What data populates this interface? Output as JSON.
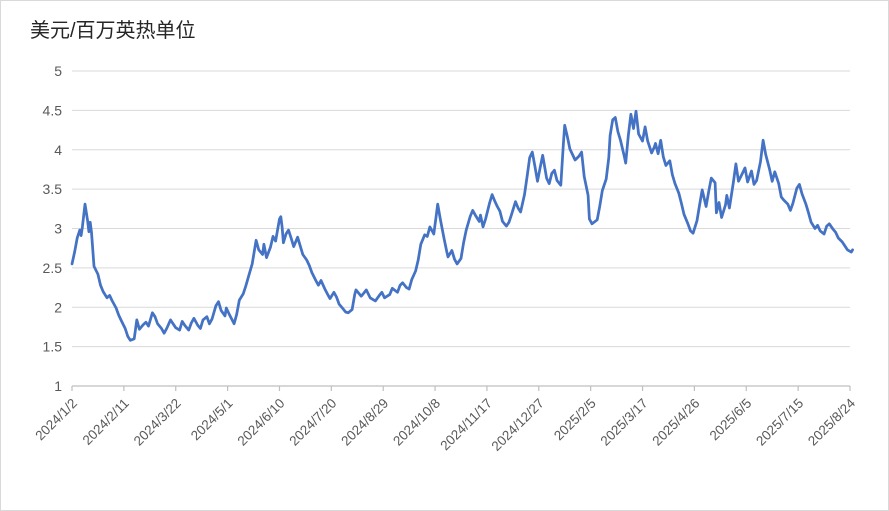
{
  "chart_data": {
    "type": "line",
    "title": "美元/百万英热单位",
    "xlabel": "",
    "ylabel": "",
    "ylim": [
      1,
      5
    ],
    "yticks": [
      1,
      1.5,
      2,
      2.5,
      3,
      3.5,
      4,
      4.5,
      5
    ],
    "xticks": [
      "2024/1/2",
      "2024/2/11",
      "2024/3/22",
      "2024/5/1",
      "2024/6/10",
      "2024/7/20",
      "2024/8/29",
      "2024/10/8",
      "2024/11/17",
      "2024/12/27",
      "2025/2/5",
      "2025/3/17",
      "2025/4/26",
      "2025/6/5",
      "2025/7/15",
      "2025/8/24"
    ],
    "grid": "horizontal",
    "legend": "none",
    "line_color": "#4472C4",
    "grid_color": "#D9D9D9",
    "axis_color": "#BFBFBF",
    "label_color": "#595959",
    "title_color": "#262626",
    "points": [
      [
        "2024/1/2",
        2.55
      ],
      [
        "2024/1/4",
        2.7
      ],
      [
        "2024/1/6",
        2.88
      ],
      [
        "2024/1/8",
        2.98
      ],
      [
        "2024/1/9",
        2.91
      ],
      [
        "2024/1/10",
        3.02
      ],
      [
        "2024/1/12",
        3.31
      ],
      [
        "2024/1/14",
        3.1
      ],
      [
        "2024/1/15",
        2.96
      ],
      [
        "2024/1/16",
        3.08
      ],
      [
        "2024/1/17",
        2.95
      ],
      [
        "2024/1/19",
        2.52
      ],
      [
        "2024/1/22",
        2.42
      ],
      [
        "2024/1/24",
        2.28
      ],
      [
        "2024/1/26",
        2.2
      ],
      [
        "2024/1/29",
        2.12
      ],
      [
        "2024/1/31",
        2.15
      ],
      [
        "2024/2/2",
        2.08
      ],
      [
        "2024/2/5",
        1.99
      ],
      [
        "2024/2/7",
        1.9
      ],
      [
        "2024/2/9",
        1.83
      ],
      [
        "2024/2/12",
        1.73
      ],
      [
        "2024/2/14",
        1.63
      ],
      [
        "2024/2/16",
        1.58
      ],
      [
        "2024/2/19",
        1.6
      ],
      [
        "2024/2/21",
        1.84
      ],
      [
        "2024/2/23",
        1.72
      ],
      [
        "2024/2/26",
        1.78
      ],
      [
        "2024/2/28",
        1.81
      ],
      [
        "2024/3/1",
        1.76
      ],
      [
        "2024/3/4",
        1.93
      ],
      [
        "2024/3/6",
        1.88
      ],
      [
        "2024/3/8",
        1.79
      ],
      [
        "2024/3/11",
        1.73
      ],
      [
        "2024/3/13",
        1.67
      ],
      [
        "2024/3/15",
        1.73
      ],
      [
        "2024/3/18",
        1.84
      ],
      [
        "2024/3/20",
        1.79
      ],
      [
        "2024/3/22",
        1.74
      ],
      [
        "2024/3/25",
        1.71
      ],
      [
        "2024/3/27",
        1.82
      ],
      [
        "2024/3/29",
        1.77
      ],
      [
        "2024/4/1",
        1.71
      ],
      [
        "2024/4/3",
        1.8
      ],
      [
        "2024/4/5",
        1.86
      ],
      [
        "2024/4/8",
        1.77
      ],
      [
        "2024/4/10",
        1.73
      ],
      [
        "2024/4/12",
        1.84
      ],
      [
        "2024/4/15",
        1.88
      ],
      [
        "2024/4/17",
        1.79
      ],
      [
        "2024/4/19",
        1.85
      ],
      [
        "2024/4/22",
        2.02
      ],
      [
        "2024/4/24",
        2.07
      ],
      [
        "2024/4/26",
        1.96
      ],
      [
        "2024/4/29",
        1.89
      ],
      [
        "2024/4/30",
        1.99
      ],
      [
        "2024/5/2",
        1.92
      ],
      [
        "2024/5/6",
        1.79
      ],
      [
        "2024/5/8",
        1.91
      ],
      [
        "2024/5/10",
        2.09
      ],
      [
        "2024/5/13",
        2.17
      ],
      [
        "2024/5/15",
        2.27
      ],
      [
        "2024/5/17",
        2.38
      ],
      [
        "2024/5/20",
        2.55
      ],
      [
        "2024/5/23",
        2.85
      ],
      [
        "2024/5/25",
        2.73
      ],
      [
        "2024/5/28",
        2.67
      ],
      [
        "2024/5/29",
        2.8
      ],
      [
        "2024/5/31",
        2.63
      ],
      [
        "2024/6/3",
        2.76
      ],
      [
        "2024/6/5",
        2.9
      ],
      [
        "2024/6/7",
        2.84
      ],
      [
        "2024/6/10",
        3.12
      ],
      [
        "2024/6/11",
        3.15
      ],
      [
        "2024/6/12",
        3.02
      ],
      [
        "2024/6/13",
        2.82
      ],
      [
        "2024/6/15",
        2.93
      ],
      [
        "2024/6/17",
        2.98
      ],
      [
        "2024/6/19",
        2.88
      ],
      [
        "2024/6/21",
        2.77
      ],
      [
        "2024/6/24",
        2.89
      ],
      [
        "2024/6/26",
        2.78
      ],
      [
        "2024/6/28",
        2.67
      ],
      [
        "2024/7/1",
        2.6
      ],
      [
        "2024/7/3",
        2.53
      ],
      [
        "2024/7/5",
        2.44
      ],
      [
        "2024/7/8",
        2.34
      ],
      [
        "2024/7/10",
        2.28
      ],
      [
        "2024/7/12",
        2.34
      ],
      [
        "2024/7/15",
        2.23
      ],
      [
        "2024/7/17",
        2.17
      ],
      [
        "2024/7/19",
        2.11
      ],
      [
        "2024/7/22",
        2.19
      ],
      [
        "2024/7/24",
        2.13
      ],
      [
        "2024/7/26",
        2.04
      ],
      [
        "2024/7/29",
        1.98
      ],
      [
        "2024/7/31",
        1.94
      ],
      [
        "2024/8/2",
        1.93
      ],
      [
        "2024/8/5",
        1.97
      ],
      [
        "2024/8/7",
        2.16
      ],
      [
        "2024/8/8",
        2.22
      ],
      [
        "2024/8/12",
        2.14
      ],
      [
        "2024/8/14",
        2.18
      ],
      [
        "2024/8/16",
        2.22
      ],
      [
        "2024/8/19",
        2.12
      ],
      [
        "2024/8/21",
        2.1
      ],
      [
        "2024/8/23",
        2.08
      ],
      [
        "2024/8/26",
        2.15
      ],
      [
        "2024/8/28",
        2.19
      ],
      [
        "2024/8/30",
        2.12
      ],
      [
        "2024/9/3",
        2.16
      ],
      [
        "2024/9/5",
        2.24
      ],
      [
        "2024/9/9",
        2.19
      ],
      [
        "2024/9/11",
        2.28
      ],
      [
        "2024/9/13",
        2.31
      ],
      [
        "2024/9/16",
        2.25
      ],
      [
        "2024/9/18",
        2.23
      ],
      [
        "2024/9/20",
        2.35
      ],
      [
        "2024/9/23",
        2.46
      ],
      [
        "2024/9/25",
        2.6
      ],
      [
        "2024/9/27",
        2.8
      ],
      [
        "2024/9/30",
        2.92
      ],
      [
        "2024/10/2",
        2.9
      ],
      [
        "2024/10/4",
        3.02
      ],
      [
        "2024/10/7",
        2.93
      ],
      [
        "2024/10/9",
        3.18
      ],
      [
        "2024/10/10",
        3.31
      ],
      [
        "2024/10/12",
        3.12
      ],
      [
        "2024/10/15",
        2.87
      ],
      [
        "2024/10/17",
        2.71
      ],
      [
        "2024/10/18",
        2.64
      ],
      [
        "2024/10/21",
        2.72
      ],
      [
        "2024/10/23",
        2.61
      ],
      [
        "2024/10/25",
        2.55
      ],
      [
        "2024/10/28",
        2.62
      ],
      [
        "2024/10/30",
        2.82
      ],
      [
        "2024/11/1",
        2.98
      ],
      [
        "2024/11/4",
        3.15
      ],
      [
        "2024/11/6",
        3.23
      ],
      [
        "2024/11/8",
        3.17
      ],
      [
        "2024/11/11",
        3.09
      ],
      [
        "2024/11/12",
        3.17
      ],
      [
        "2024/11/14",
        3.02
      ],
      [
        "2024/11/16",
        3.12
      ],
      [
        "2024/11/19",
        3.32
      ],
      [
        "2024/11/21",
        3.43
      ],
      [
        "2024/11/23",
        3.35
      ],
      [
        "2024/11/25",
        3.28
      ],
      [
        "2024/11/27",
        3.22
      ],
      [
        "2024/11/29",
        3.09
      ],
      [
        "2024/12/2",
        3.03
      ],
      [
        "2024/12/4",
        3.08
      ],
      [
        "2024/12/6",
        3.18
      ],
      [
        "2024/12/9",
        3.34
      ],
      [
        "2024/12/11",
        3.26
      ],
      [
        "2024/12/13",
        3.21
      ],
      [
        "2024/12/16",
        3.43
      ],
      [
        "2024/12/18",
        3.66
      ],
      [
        "2024/12/20",
        3.9
      ],
      [
        "2024/12/22",
        3.97
      ],
      [
        "2024/12/24",
        3.79
      ],
      [
        "2024/12/26",
        3.6
      ],
      [
        "2024/12/28",
        3.77
      ],
      [
        "2024/12/30",
        3.93
      ],
      [
        "2025/1/2",
        3.64
      ],
      [
        "2025/1/4",
        3.57
      ],
      [
        "2025/1/6",
        3.7
      ],
      [
        "2025/1/8",
        3.74
      ],
      [
        "2025/1/10",
        3.61
      ],
      [
        "2025/1/13",
        3.55
      ],
      [
        "2025/1/15",
        4.08
      ],
      [
        "2025/1/16",
        4.31
      ],
      [
        "2025/1/18",
        4.17
      ],
      [
        "2025/1/20",
        4.01
      ],
      [
        "2025/1/22",
        3.94
      ],
      [
        "2025/1/24",
        3.87
      ],
      [
        "2025/1/27",
        3.92
      ],
      [
        "2025/1/29",
        3.97
      ],
      [
        "2025/1/31",
        3.66
      ],
      [
        "2025/2/3",
        3.42
      ],
      [
        "2025/2/4",
        3.12
      ],
      [
        "2025/2/6",
        3.06
      ],
      [
        "2025/2/10",
        3.11
      ],
      [
        "2025/2/12",
        3.28
      ],
      [
        "2025/2/14",
        3.48
      ],
      [
        "2025/2/17",
        3.63
      ],
      [
        "2025/2/19",
        3.9
      ],
      [
        "2025/2/20",
        4.18
      ],
      [
        "2025/2/22",
        4.38
      ],
      [
        "2025/2/24",
        4.41
      ],
      [
        "2025/2/26",
        4.23
      ],
      [
        "2025/2/28",
        4.12
      ],
      [
        "2025/3/3",
        3.91
      ],
      [
        "2025/3/4",
        3.83
      ],
      [
        "2025/3/6",
        4.18
      ],
      [
        "2025/3/8",
        4.45
      ],
      [
        "2025/3/10",
        4.27
      ],
      [
        "2025/3/12",
        4.49
      ],
      [
        "2025/3/14",
        4.2
      ],
      [
        "2025/3/17",
        4.11
      ],
      [
        "2025/3/19",
        4.29
      ],
      [
        "2025/3/21",
        4.11
      ],
      [
        "2025/3/24",
        3.96
      ],
      [
        "2025/3/26",
        4.03
      ],
      [
        "2025/3/27",
        4.08
      ],
      [
        "2025/3/29",
        3.95
      ],
      [
        "2025/3/31",
        4.12
      ],
      [
        "2025/4/2",
        3.91
      ],
      [
        "2025/4/4",
        3.8
      ],
      [
        "2025/4/7",
        3.86
      ],
      [
        "2025/4/9",
        3.68
      ],
      [
        "2025/4/11",
        3.57
      ],
      [
        "2025/4/14",
        3.45
      ],
      [
        "2025/4/16",
        3.32
      ],
      [
        "2025/4/18",
        3.18
      ],
      [
        "2025/4/21",
        3.06
      ],
      [
        "2025/4/23",
        2.97
      ],
      [
        "2025/4/25",
        2.94
      ],
      [
        "2025/4/28",
        3.1
      ],
      [
        "2025/4/30",
        3.3
      ],
      [
        "2025/5/2",
        3.49
      ],
      [
        "2025/5/5",
        3.28
      ],
      [
        "2025/5/7",
        3.47
      ],
      [
        "2025/5/9",
        3.64
      ],
      [
        "2025/5/12",
        3.58
      ],
      [
        "2025/5/13",
        3.2
      ],
      [
        "2025/5/15",
        3.33
      ],
      [
        "2025/5/17",
        3.14
      ],
      [
        "2025/5/20",
        3.3
      ],
      [
        "2025/5/21",
        3.42
      ],
      [
        "2025/5/23",
        3.26
      ],
      [
        "2025/5/26",
        3.58
      ],
      [
        "2025/5/28",
        3.82
      ],
      [
        "2025/5/30",
        3.6
      ],
      [
        "2025/6/2",
        3.7
      ],
      [
        "2025/6/4",
        3.77
      ],
      [
        "2025/6/6",
        3.59
      ],
      [
        "2025/6/9",
        3.73
      ],
      [
        "2025/6/11",
        3.56
      ],
      [
        "2025/6/13",
        3.61
      ],
      [
        "2025/6/16",
        3.85
      ],
      [
        "2025/6/18",
        4.12
      ],
      [
        "2025/6/20",
        3.94
      ],
      [
        "2025/6/23",
        3.75
      ],
      [
        "2025/6/25",
        3.6
      ],
      [
        "2025/6/27",
        3.72
      ],
      [
        "2025/6/30",
        3.57
      ],
      [
        "2025/7/2",
        3.4
      ],
      [
        "2025/7/4",
        3.36
      ],
      [
        "2025/7/7",
        3.31
      ],
      [
        "2025/7/9",
        3.23
      ],
      [
        "2025/7/11",
        3.32
      ],
      [
        "2025/7/14",
        3.51
      ],
      [
        "2025/7/16",
        3.56
      ],
      [
        "2025/7/18",
        3.44
      ],
      [
        "2025/7/21",
        3.31
      ],
      [
        "2025/7/23",
        3.2
      ],
      [
        "2025/7/25",
        3.08
      ],
      [
        "2025/7/28",
        3.0
      ],
      [
        "2025/7/30",
        3.04
      ],
      [
        "2025/8/1",
        2.97
      ],
      [
        "2025/8/4",
        2.93
      ],
      [
        "2025/8/6",
        3.03
      ],
      [
        "2025/8/8",
        3.06
      ],
      [
        "2025/8/11",
        2.99
      ],
      [
        "2025/8/13",
        2.95
      ],
      [
        "2025/8/15",
        2.88
      ],
      [
        "2025/8/18",
        2.83
      ],
      [
        "2025/8/20",
        2.78
      ],
      [
        "2025/8/22",
        2.73
      ],
      [
        "2025/8/25",
        2.7
      ],
      [
        "2025/8/26",
        2.73
      ]
    ]
  }
}
